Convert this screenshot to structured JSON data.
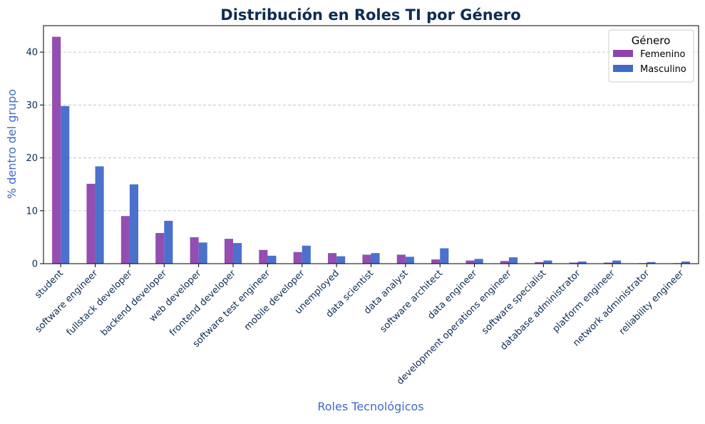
{
  "chart_data": {
    "type": "bar",
    "title": "Distribución en Roles TI por Género",
    "xlabel": "Roles Tecnológicos",
    "ylabel": "% dentro del grupo",
    "ylim": [
      0,
      45
    ],
    "yticks": [
      0,
      10,
      20,
      30,
      40
    ],
    "grid": "horizontal dashed",
    "legend_position": "top-right",
    "legend_title": "Género",
    "categories": [
      "student",
      "software engineer",
      "fullstack developer",
      "backend developer",
      "web developer",
      "frontend developer",
      "software test engineer",
      "mobile developer",
      "unemployed",
      "data scientist",
      "data analyst",
      "software architect",
      "data engineer",
      "development operations engineer",
      "software specialist",
      "database administrator",
      "platform engineer",
      "network administrator",
      "reliability engineer"
    ],
    "series": [
      {
        "name": "Femenino",
        "color": "#8e44ad",
        "values": [
          42.9,
          15.1,
          9.0,
          5.8,
          5.0,
          4.7,
          2.6,
          2.2,
          2.0,
          1.7,
          1.7,
          0.8,
          0.6,
          0.5,
          0.3,
          0.2,
          0.2,
          0.1,
          0.1
        ]
      },
      {
        "name": "Masculino",
        "color": "#4169c9",
        "values": [
          29.8,
          18.4,
          15.0,
          8.1,
          4.0,
          3.9,
          1.5,
          3.4,
          1.4,
          2.0,
          1.3,
          2.9,
          0.9,
          1.2,
          0.6,
          0.4,
          0.6,
          0.3,
          0.4
        ]
      }
    ]
  }
}
